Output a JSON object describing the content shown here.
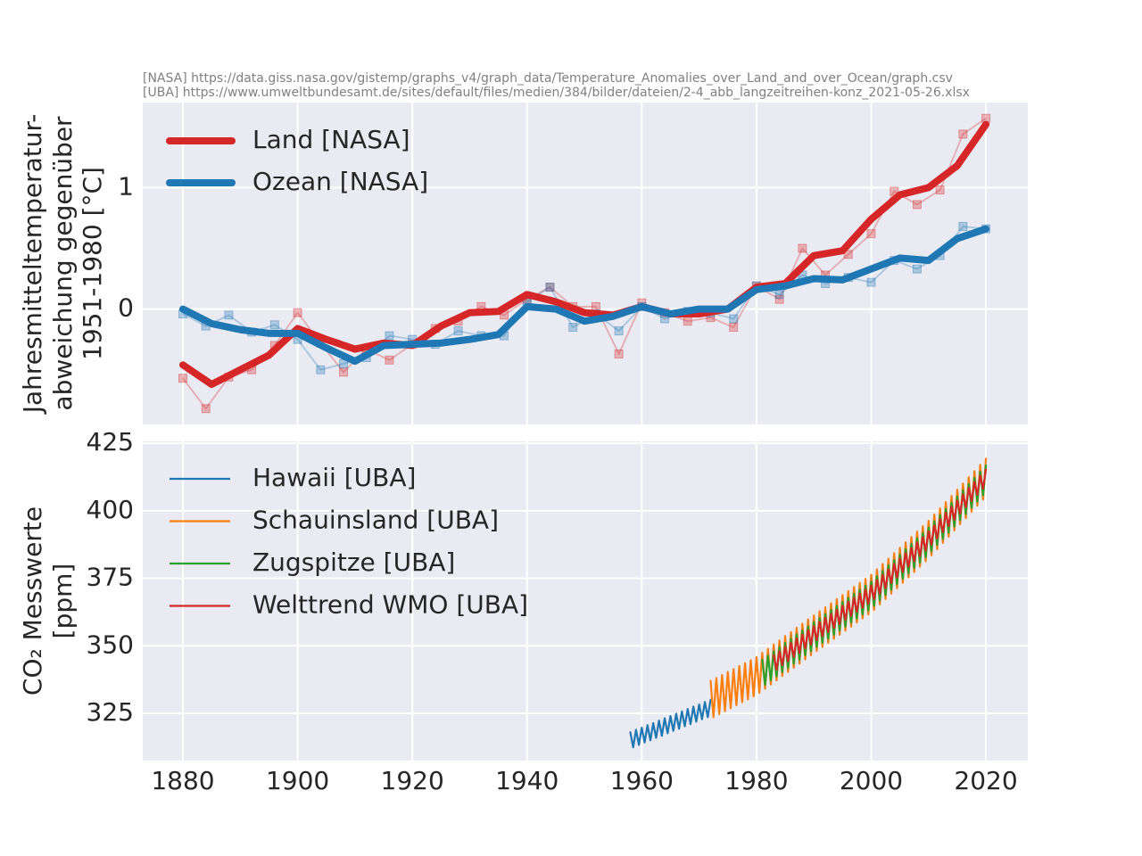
{
  "chart_data": [
    {
      "type": "line",
      "subtitle": [
        "[NASA] https://data.giss.nasa.gov/gistemp/graphs_v4/graph_data/Temperature_Anomalies_over_Land_and_over_Ocean/graph.csv",
        "[UBA] https://www.umweltbundesamt.de/sites/default/files/medien/384/bilder/dateien/2-4_abb_langzeitreihen-konz_2021-05-26.xlsx"
      ],
      "ylabel": [
        "Jahresmitteltemperatur-",
        "abweichung gegenüber",
        "1951-1980 [°C]"
      ],
      "xlim": [
        1873,
        2027.3
      ],
      "ylim": [
        -0.95,
        1.7
      ],
      "yticks": [
        0,
        1
      ],
      "grid": true,
      "legend": "upper left",
      "series": [
        {
          "color": "#d62728",
          "marker": "square",
          "x": [
            1880,
            1884,
            1888,
            1892,
            1896,
            1900,
            1904,
            1908,
            1912,
            1916,
            1920,
            1924,
            1928,
            1932,
            1936,
            1940,
            1944,
            1948,
            1952,
            1956,
            1960,
            1964,
            1968,
            1972,
            1976,
            1980,
            1984,
            1988,
            1992,
            1996,
            2000,
            2004,
            2008,
            2012,
            2016,
            2020
          ],
          "values": [
            -0.57,
            -0.82,
            -0.56,
            -0.5,
            -0.3,
            -0.03,
            -0.28,
            -0.52,
            -0.33,
            -0.42,
            -0.29,
            -0.16,
            -0.1,
            0.02,
            -0.05,
            0.08,
            0.18,
            0.02,
            0.02,
            -0.37,
            0.05,
            -0.03,
            -0.1,
            -0.07,
            -0.15,
            0.19,
            0.08,
            0.5,
            0.28,
            0.45,
            0.62,
            0.97,
            0.86,
            0.98,
            1.44,
            1.57
          ]
        },
        {
          "color": "#1f77b4",
          "marker": "square",
          "x": [
            1880,
            1884,
            1888,
            1892,
            1896,
            1900,
            1904,
            1908,
            1912,
            1916,
            1920,
            1924,
            1928,
            1932,
            1936,
            1940,
            1944,
            1948,
            1952,
            1956,
            1960,
            1964,
            1968,
            1972,
            1976,
            1980,
            1984,
            1988,
            1992,
            1996,
            2000,
            2004,
            2008,
            2012,
            2016,
            2020
          ],
          "values": [
            -0.04,
            -0.14,
            -0.05,
            -0.19,
            -0.13,
            -0.25,
            -0.5,
            -0.45,
            -0.4,
            -0.22,
            -0.25,
            -0.29,
            -0.18,
            -0.22,
            -0.22,
            0.06,
            0.18,
            -0.15,
            -0.04,
            -0.18,
            0.02,
            -0.08,
            -0.02,
            -0.03,
            -0.08,
            0.19,
            0.12,
            0.28,
            0.21,
            0.26,
            0.22,
            0.4,
            0.33,
            0.44,
            0.68,
            0.66
          ]
        },
        {
          "name": "Land [NASA]",
          "color": "#d62728",
          "x": [
            1880,
            1885,
            1890,
            1895,
            1900,
            1905,
            1910,
            1915,
            1920,
            1925,
            1930,
            1935,
            1940,
            1945,
            1950,
            1955,
            1960,
            1965,
            1970,
            1975,
            1980,
            1985,
            1990,
            1995,
            2000,
            2005,
            2010,
            2015,
            2020
          ],
          "values": [
            -0.46,
            -0.62,
            -0.5,
            -0.38,
            -0.16,
            -0.25,
            -0.33,
            -0.28,
            -0.3,
            -0.14,
            -0.03,
            -0.02,
            0.12,
            0.06,
            -0.03,
            -0.05,
            0.02,
            -0.04,
            -0.04,
            0,
            0.18,
            0.21,
            0.44,
            0.48,
            0.74,
            0.94,
            1,
            1.18,
            1.52
          ]
        },
        {
          "name": "Ozean [NASA]",
          "color": "#1f77b4",
          "x": [
            1880,
            1885,
            1890,
            1895,
            1900,
            1905,
            1910,
            1915,
            1920,
            1925,
            1930,
            1935,
            1940,
            1945,
            1950,
            1955,
            1960,
            1965,
            1970,
            1975,
            1980,
            1985,
            1990,
            1995,
            2000,
            2005,
            2010,
            2015,
            2020
          ],
          "values": [
            0,
            -0.12,
            -0.17,
            -0.2,
            -0.2,
            -0.32,
            -0.43,
            -0.3,
            -0.29,
            -0.28,
            -0.25,
            -0.21,
            0.02,
            0,
            -0.1,
            -0.06,
            0.02,
            -0.04,
            0,
            0,
            0.16,
            0.19,
            0.25,
            0.24,
            0.33,
            0.42,
            0.4,
            0.58,
            0.66
          ]
        }
      ]
    },
    {
      "type": "line",
      "ylabel": [
        "CO₂ Messwerte",
        "[ppm]"
      ],
      "xlim": [
        1873,
        2027.3
      ],
      "ylim": [
        307.5,
        425.7
      ],
      "xticks": [
        1880,
        1900,
        1920,
        1940,
        1960,
        1980,
        2000,
        2020
      ],
      "yticks": [
        325,
        350,
        375,
        400,
        425
      ],
      "grid": true,
      "legend": "upper left",
      "series": [
        {
          "name": "Hawaii [UBA]",
          "color": "#1f77b4",
          "x": [
            1958,
            1958.5,
            1959,
            1959.5,
            1960,
            1960.5,
            1961,
            1961.5,
            1962,
            1962.5,
            1963,
            1963.5,
            1964,
            1964.5,
            1965,
            1965.5,
            1966,
            1966.5,
            1967,
            1967.5,
            1968,
            1968.5,
            1969,
            1969.5,
            1970,
            1970.5,
            1971,
            1971.5,
            1972
          ],
          "values": [
            318,
            312.4,
            318.9,
            313.3,
            319.7,
            314.2,
            320.6,
            315,
            321.4,
            315.9,
            322.3,
            316.7,
            323.2,
            317.6,
            324,
            318.5,
            324.9,
            319.3,
            325.7,
            320.2,
            326.6,
            321,
            327.5,
            321.9,
            328.3,
            322.8,
            329.2,
            323.6,
            330
          ]
        },
        {
          "name": "Schauinsland [UBA]",
          "color": "#ff7f0e",
          "x": [
            1972,
            1972.5,
            1973,
            1973.5,
            1974,
            1974.5,
            1975,
            1975.5,
            1976,
            1976.5,
            1977,
            1977.5,
            1978,
            1978.5,
            1979,
            1979.5,
            1980,
            1980.5,
            1981,
            1981.5,
            1982,
            1982.5,
            1983,
            1983.5,
            1984,
            1984.5,
            1985,
            1985.5,
            1986,
            1986.5,
            1987,
            1987.5,
            1988,
            1988.5,
            1989,
            1989.5,
            1990,
            1990.5,
            1991,
            1991.5,
            1992,
            1992.5,
            1993,
            1993.5,
            1994,
            1994.5,
            1995,
            1995.5,
            1996,
            1996.5,
            1997,
            1997.5,
            1998,
            1998.5,
            1999,
            1999.5,
            2000,
            2000.5,
            2001,
            2001.5,
            2002,
            2002.5,
            2003,
            2003.5,
            2004,
            2004.5,
            2005,
            2005.5,
            2006,
            2006.5,
            2007,
            2007.5,
            2008,
            2008.5,
            2009,
            2009.5,
            2010,
            2010.5,
            2011,
            2011.5,
            2012,
            2012.5,
            2013,
            2013.5,
            2014,
            2014.5,
            2015,
            2015.5,
            2016,
            2016.5,
            2017,
            2017.5,
            2018,
            2018.5,
            2019,
            2019.5,
            2020
          ],
          "values": [
            337,
            323.6,
            338.1,
            324.7,
            339.2,
            325.8,
            340.3,
            326.9,
            341.4,
            328,
            342.5,
            329.1,
            343.6,
            330.2,
            344.7,
            331.3,
            345.8,
            332.6,
            347.4,
            334.1,
            348.9,
            335.7,
            350.5,
            337.2,
            352,
            338.8,
            353.6,
            340.3,
            355.1,
            341.9,
            356.7,
            343.4,
            358.2,
            345,
            359.8,
            346.5,
            361.3,
            348.1,
            362.8,
            349.6,
            364.3,
            351.1,
            365.8,
            352.6,
            367.3,
            354.1,
            368.8,
            355.6,
            370.3,
            357.1,
            371.8,
            358.6,
            373.3,
            360.1,
            374.8,
            361.6,
            376.3,
            363.3,
            378.3,
            365.3,
            380.3,
            367.3,
            382.3,
            369.3,
            384.3,
            371.3,
            386.3,
            373.3,
            388.3,
            375.3,
            390.3,
            377.3,
            392.3,
            379.3,
            394.3,
            381.3,
            396.3,
            383.5,
            398.6,
            385.8,
            400.9,
            388.1,
            403.2,
            390.4,
            405.5,
            392.7,
            407.8,
            395,
            410.1,
            397.3,
            412.4,
            399.6,
            414.7,
            401.9,
            417,
            404.2,
            419.3
          ]
        },
        {
          "name": "Zugspitze [UBA]",
          "color": "#2ca02c",
          "x": [
            1981,
            1981.5,
            1982,
            1982.5,
            1983,
            1983.5,
            1984,
            1984.5,
            1985,
            1985.5,
            1986,
            1986.5,
            1987,
            1987.5,
            1988,
            1988.5,
            1989,
            1989.5,
            1990,
            1990.5,
            1991,
            1991.5,
            1992,
            1992.5,
            1993,
            1993.5,
            1994,
            1994.5,
            1995,
            1995.5,
            1996,
            1996.5,
            1997,
            1997.5,
            1998,
            1998.5,
            1999,
            1999.5,
            2000,
            2000.5,
            2001,
            2001.5,
            2002,
            2002.5,
            2003,
            2003.5,
            2004,
            2004.5,
            2005,
            2005.5,
            2006,
            2006.5,
            2007,
            2007.5,
            2008,
            2008.5,
            2009,
            2009.5,
            2010,
            2010.5,
            2011,
            2011.5,
            2012,
            2012.5,
            2013,
            2013.5,
            2014,
            2014.5,
            2015,
            2015.5,
            2016,
            2016.5,
            2017,
            2017.5,
            2018,
            2018.5,
            2019,
            2019.5,
            2020
          ],
          "values": [
            344.9,
            335.6,
            346.4,
            337.2,
            348,
            338.7,
            349.5,
            340.3,
            351.1,
            341.8,
            352.6,
            343.4,
            354.2,
            344.9,
            355.7,
            346.5,
            357.3,
            348,
            358.8,
            349.6,
            360.3,
            351.1,
            361.8,
            352.6,
            363.3,
            354.1,
            364.8,
            355.6,
            366.3,
            357.1,
            367.8,
            358.6,
            369.3,
            360.1,
            370.8,
            361.6,
            372.3,
            363.1,
            373.8,
            364.8,
            375.8,
            366.8,
            377.8,
            368.8,
            379.8,
            370.8,
            381.8,
            372.8,
            383.8,
            374.8,
            385.8,
            376.8,
            387.8,
            378.8,
            389.8,
            380.8,
            391.8,
            382.8,
            393.8,
            385,
            396.1,
            387.3,
            398.4,
            389.6,
            400.7,
            391.9,
            403,
            394.2,
            405.3,
            396.5,
            407.6,
            398.8,
            409.9,
            401.1,
            412.2,
            403.4,
            414.5,
            405.7,
            416.8
          ]
        },
        {
          "name": "Welttrend WMO [UBA]",
          "color": "#d62728",
          "x": [
            1983,
            1983.5,
            1984,
            1984.5,
            1985,
            1985.5,
            1986,
            1986.5,
            1987,
            1987.5,
            1988,
            1988.5,
            1989,
            1989.5,
            1990,
            1990.5,
            1991,
            1991.5,
            1992,
            1992.5,
            1993,
            1993.5,
            1994,
            1994.5,
            1995,
            1995.5,
            1996,
            1996.5,
            1997,
            1997.5,
            1998,
            1998.5,
            1999,
            1999.5,
            2000,
            2000.5,
            2001,
            2001.5,
            2002,
            2002.5,
            2003,
            2003.5,
            2004,
            2004.5,
            2005,
            2005.5,
            2006,
            2006.5,
            2007,
            2007.5,
            2008,
            2008.5,
            2009,
            2009.5,
            2010,
            2010.5,
            2011,
            2011.5,
            2012,
            2012.5,
            2013,
            2013.5,
            2014,
            2014.5,
            2015,
            2015.5,
            2016,
            2016.5,
            2017,
            2017.5,
            2018,
            2018.5,
            2019,
            2019.5,
            2020
          ],
          "values": [
            346.5,
            341.2,
            348,
            342.8,
            349.6,
            344.3,
            351.1,
            345.9,
            352.7,
            347.4,
            354.2,
            349,
            355.8,
            350.5,
            357.3,
            352.1,
            358.8,
            353.6,
            360.3,
            355.1,
            361.8,
            356.6,
            363.3,
            358.1,
            364.8,
            359.6,
            366.3,
            361.1,
            367.8,
            362.6,
            369.3,
            364.1,
            370.8,
            365.6,
            372.3,
            367.3,
            374.3,
            369.3,
            376.3,
            371.3,
            378.3,
            373.3,
            380.3,
            375.3,
            382.3,
            377.3,
            384.3,
            379.3,
            386.3,
            381.3,
            388.3,
            383.3,
            390.3,
            385.3,
            392.3,
            387.5,
            394.6,
            389.8,
            396.9,
            392.1,
            399.2,
            394.4,
            401.5,
            396.7,
            403.8,
            399,
            406.1,
            401.3,
            408.4,
            403.6,
            410.7,
            405.9,
            413,
            408.2,
            415.3
          ]
        }
      ]
    }
  ]
}
